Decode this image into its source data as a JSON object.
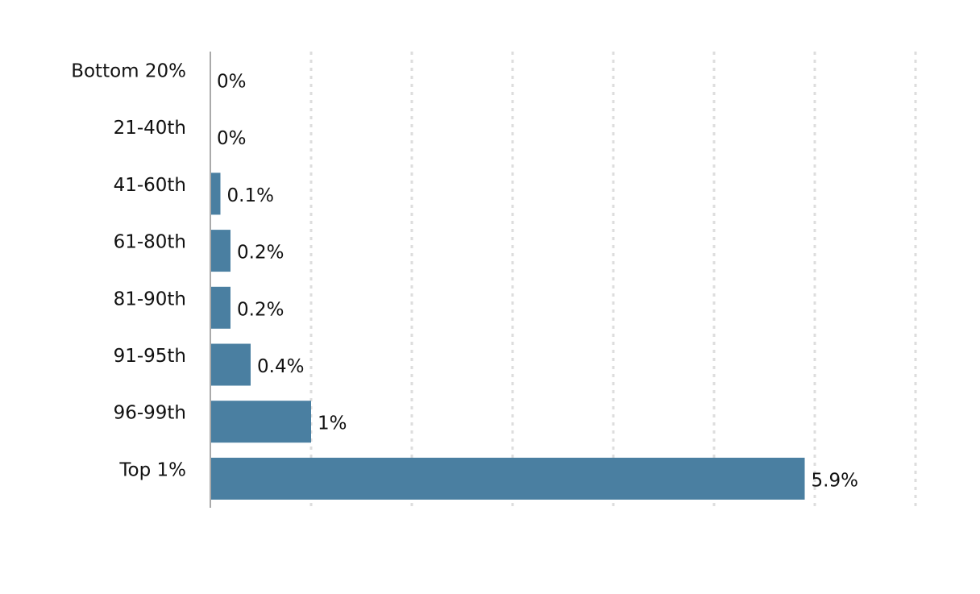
{
  "chart_data": {
    "type": "bar",
    "orientation": "horizontal",
    "categories": [
      "Bottom 20%",
      "21-40th",
      "41-60th",
      "61-80th",
      "81-90th",
      "91-95th",
      "96-99th",
      "Top 1%"
    ],
    "values": [
      0,
      0,
      0.1,
      0.2,
      0.2,
      0.4,
      1,
      5.9
    ],
    "value_labels": [
      "0%",
      "0%",
      "0.1%",
      "0.2%",
      "0.2%",
      "0.4%",
      "1%",
      "5.9%"
    ],
    "color": "#4a7fa1",
    "xlim": [
      0,
      7
    ],
    "xticks": [
      1,
      2,
      3,
      4,
      5,
      6,
      7
    ],
    "grid": true
  }
}
